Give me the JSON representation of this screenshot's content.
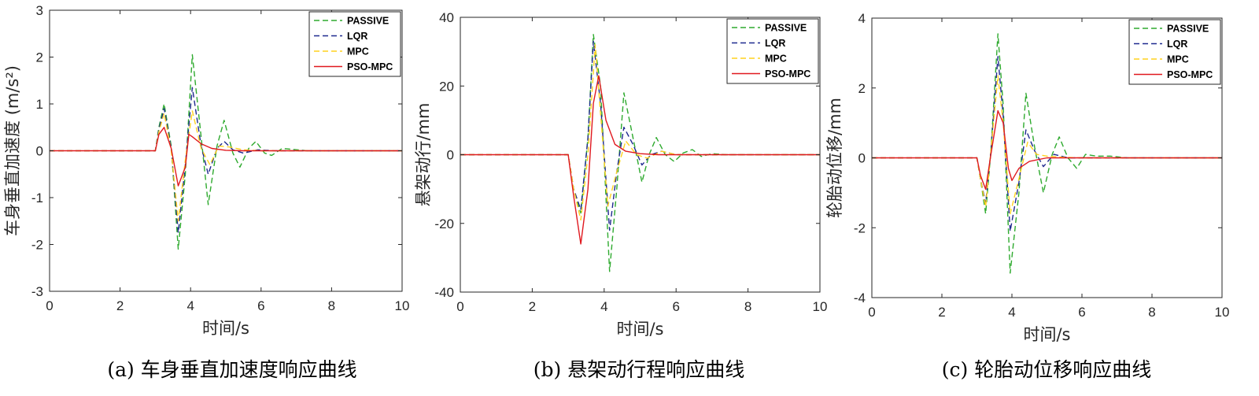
{
  "legend": [
    {
      "name": "PASSIVE",
      "color": "#2eaa2e",
      "dash": "7,4"
    },
    {
      "name": "LQR",
      "color": "#1f2a8f",
      "dash": "7,4"
    },
    {
      "name": "MPC",
      "color": "#ffd21f",
      "dash": "7,4"
    },
    {
      "name": "PSO-MPC",
      "color": "#e0191f",
      "dash": ""
    }
  ],
  "chart_data": [
    {
      "type": "line",
      "caption": "(a) 车身垂直加速度响应曲线",
      "xlabel": "时间/s",
      "ylabel": "车身垂直加速度 (m/s²)",
      "xlim": [
        0,
        10
      ],
      "ylim": [
        -3,
        3
      ],
      "xticks": [
        0,
        2,
        4,
        6,
        8,
        10
      ],
      "yticks": [
        -3,
        -2,
        -1,
        0,
        1,
        2,
        3
      ],
      "legend_position": "top-right",
      "grid": false,
      "series": [
        {
          "name": "PASSIVE",
          "x": [
            0,
            3.0,
            3.1,
            3.25,
            3.45,
            3.65,
            3.85,
            4.05,
            4.3,
            4.5,
            4.75,
            4.95,
            5.2,
            5.4,
            5.65,
            5.85,
            6.1,
            6.3,
            6.6,
            6.9,
            7.3,
            10
          ],
          "y": [
            0,
            0,
            0.5,
            1.0,
            0.1,
            -2.1,
            -0.5,
            2.05,
            0.3,
            -1.15,
            0.1,
            0.65,
            -0.05,
            -0.35,
            0.05,
            0.2,
            -0.05,
            -0.1,
            0.05,
            0.03,
            0,
            0
          ]
        },
        {
          "name": "LQR",
          "x": [
            0,
            3.0,
            3.1,
            3.25,
            3.45,
            3.65,
            3.85,
            4.05,
            4.3,
            4.5,
            4.75,
            4.95,
            5.2,
            5.5,
            5.9,
            6.4,
            10
          ],
          "y": [
            0,
            0,
            0.45,
            0.9,
            0.05,
            -1.75,
            -0.3,
            1.35,
            0.1,
            -0.5,
            0.05,
            0.2,
            0.02,
            -0.05,
            0.02,
            0,
            0
          ]
        },
        {
          "name": "MPC",
          "x": [
            0,
            3.0,
            3.1,
            3.25,
            3.45,
            3.65,
            3.85,
            4.05,
            4.3,
            4.55,
            4.8,
            5.1,
            5.5,
            6.0,
            10
          ],
          "y": [
            0,
            0,
            0.4,
            0.8,
            0.0,
            -1.5,
            -0.2,
            0.85,
            0.05,
            -0.3,
            0.1,
            0.08,
            0.02,
            0,
            0
          ]
        },
        {
          "name": "PSO-MPC",
          "x": [
            0,
            3.0,
            3.1,
            3.25,
            3.45,
            3.65,
            3.85,
            3.95,
            4.05,
            4.3,
            4.6,
            5.0,
            5.5,
            10
          ],
          "y": [
            0,
            0,
            0.35,
            0.5,
            0.05,
            -0.75,
            -0.35,
            0.35,
            0.3,
            0.15,
            0.05,
            0.01,
            0,
            0
          ]
        }
      ]
    },
    {
      "type": "line",
      "caption": "(b) 悬架动行程响应曲线",
      "xlabel": "时间/s",
      "ylabel": "悬架动行/mm",
      "xlim": [
        0,
        10
      ],
      "ylim": [
        -40,
        40
      ],
      "xticks": [
        0,
        2,
        4,
        6,
        8,
        10
      ],
      "yticks": [
        -40,
        -20,
        0,
        20,
        40
      ],
      "legend_position": "top-right",
      "grid": false,
      "series": [
        {
          "name": "PASSIVE",
          "x": [
            0,
            3.0,
            3.15,
            3.35,
            3.55,
            3.7,
            3.9,
            4.15,
            4.35,
            4.55,
            4.8,
            5.05,
            5.25,
            5.45,
            5.7,
            5.95,
            6.2,
            6.45,
            6.7,
            7.0,
            7.4,
            10
          ],
          "y": [
            0,
            0,
            -10,
            -17,
            5,
            35,
            20,
            -34,
            -10,
            18,
            5,
            -8,
            0,
            5,
            0,
            -2,
            0.5,
            1.5,
            -0.5,
            0.3,
            0,
            0
          ]
        },
        {
          "name": "LQR",
          "x": [
            0,
            3.0,
            3.15,
            3.35,
            3.55,
            3.7,
            3.9,
            4.15,
            4.35,
            4.55,
            4.8,
            5.05,
            5.3,
            5.6,
            6.0,
            6.5,
            10
          ],
          "y": [
            0,
            0,
            -10,
            -16,
            5,
            33,
            15,
            -22,
            -5,
            8,
            3,
            -3,
            0,
            1,
            0,
            0,
            0
          ]
        },
        {
          "name": "MPC",
          "x": [
            0,
            3.0,
            3.15,
            3.35,
            3.55,
            3.75,
            3.9,
            4.1,
            4.35,
            4.6,
            4.9,
            5.2,
            5.6,
            6.0,
            6.5,
            10
          ],
          "y": [
            0,
            0,
            -10,
            -19,
            0,
            32,
            12,
            -15,
            -5,
            4,
            0,
            -1,
            1,
            0,
            0,
            0
          ]
        },
        {
          "name": "PSO-MPC",
          "x": [
            0,
            3.0,
            3.15,
            3.35,
            3.55,
            3.7,
            3.85,
            4.05,
            4.3,
            4.6,
            5.0,
            5.5,
            10
          ],
          "y": [
            0,
            0,
            -12,
            -26,
            -10,
            15,
            23,
            10,
            3,
            1,
            0.3,
            0,
            0
          ]
        }
      ]
    },
    {
      "type": "line",
      "caption": "(c) 轮胎动位移响应曲线",
      "xlabel": "时间/s",
      "ylabel": "轮胎动位移/mm",
      "xlim": [
        0,
        10
      ],
      "ylim": [
        -4,
        4
      ],
      "xticks": [
        0,
        2,
        4,
        6,
        8,
        10
      ],
      "yticks": [
        -4,
        -2,
        0,
        2,
        4
      ],
      "legend_position": "top-right",
      "grid": false,
      "series": [
        {
          "name": "PASSIVE",
          "x": [
            0,
            3.0,
            3.1,
            3.25,
            3.4,
            3.6,
            3.75,
            3.95,
            4.2,
            4.4,
            4.65,
            4.9,
            5.15,
            5.35,
            5.6,
            5.85,
            6.1,
            6.4,
            6.8,
            7.3,
            10
          ],
          "y": [
            0,
            0,
            -0.6,
            -1.6,
            0.2,
            3.55,
            1.5,
            -3.3,
            -1.0,
            1.85,
            0.3,
            -1.0,
            0.1,
            0.6,
            0.0,
            -0.3,
            0.1,
            0.05,
            0.05,
            0,
            0
          ]
        },
        {
          "name": "LQR",
          "x": [
            0,
            3.0,
            3.1,
            3.25,
            3.4,
            3.6,
            3.75,
            3.95,
            4.2,
            4.4,
            4.65,
            4.9,
            5.2,
            5.6,
            6.2,
            10
          ],
          "y": [
            0,
            0,
            -0.6,
            -1.3,
            0.2,
            2.9,
            1.2,
            -2.1,
            -0.7,
            0.8,
            0.2,
            -0.25,
            0.1,
            0,
            0,
            0
          ]
        },
        {
          "name": "MPC",
          "x": [
            0,
            3.0,
            3.1,
            3.25,
            3.4,
            3.6,
            3.75,
            3.95,
            4.2,
            4.45,
            4.7,
            5.0,
            5.4,
            6.0,
            10
          ],
          "y": [
            0,
            0,
            -0.6,
            -1.4,
            0.2,
            2.35,
            1.0,
            -1.6,
            -0.6,
            0.45,
            0.1,
            0.05,
            0.02,
            0,
            0
          ]
        },
        {
          "name": "PSO-MPC",
          "x": [
            0,
            3.0,
            3.1,
            3.25,
            3.4,
            3.6,
            3.75,
            3.9,
            4.0,
            4.2,
            4.5,
            5.0,
            5.5,
            10
          ],
          "y": [
            0,
            0,
            -0.5,
            -0.9,
            0.1,
            1.35,
            1.0,
            -0.3,
            -0.65,
            -0.3,
            -0.1,
            0,
            0,
            0
          ]
        }
      ]
    }
  ]
}
